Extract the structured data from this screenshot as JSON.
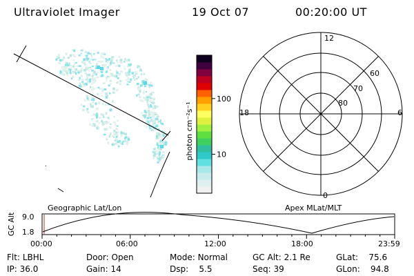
{
  "header": {
    "instrument": "Ultraviolet Imager",
    "date": "19 Oct 07",
    "time": "00:20:00 UT"
  },
  "colorbar": {
    "unit_label": "photon cm⁻²s⁻¹",
    "ticks": [
      {
        "label": "100",
        "value": 100
      },
      {
        "label": "10",
        "value": 10
      }
    ],
    "scale": "log",
    "range": [
      2,
      600
    ],
    "colors": [
      "#f0f0f0",
      "#e0f0f0",
      "#c8ecec",
      "#a8e8e8",
      "#60e0e0",
      "#30c8c8",
      "#30c0a0",
      "#40d060",
      "#60e040",
      "#a0f040",
      "#e0f040",
      "#ffff60",
      "#ffd020",
      "#ffa000",
      "#ff6000",
      "#e00000",
      "#c00020",
      "#800040",
      "#400040",
      "#100020"
    ]
  },
  "polar_plot": {
    "mlt_labels": {
      "top": "12",
      "left": "18",
      "right": "6",
      "bottom": "0"
    },
    "lat_labels": [
      "60",
      "70",
      "80"
    ]
  },
  "timeline": {
    "y_axis_title": "GC Alt",
    "y_ticks": [
      "9.0",
      "1.8"
    ],
    "left_label": "Geographic Lat/Lon",
    "right_label": "Apex MLat/MLT",
    "x_ticks": [
      "00:00",
      "06:00",
      "12:00",
      "18:00",
      "23:59"
    ]
  },
  "status": {
    "flt": {
      "label": "Flt:",
      "value": "LBHL"
    },
    "ip": {
      "label": "IP:",
      "value": "36.0"
    },
    "door": {
      "label": "Door:",
      "value": "Open"
    },
    "gain": {
      "label": "Gain:",
      "value": "14"
    },
    "mode": {
      "label": "Mode:",
      "value": "Normal"
    },
    "dsp": {
      "label": "Dsp:",
      "value": "5.5"
    },
    "gcalt": {
      "label": "GC Alt:",
      "value": "2.1 Re"
    },
    "seq": {
      "label": "Seq:",
      "value": "39"
    },
    "glat": {
      "label": "GLat:",
      "value": "75.6"
    },
    "glon": {
      "label": "GLon:",
      "value": "94.8"
    }
  }
}
